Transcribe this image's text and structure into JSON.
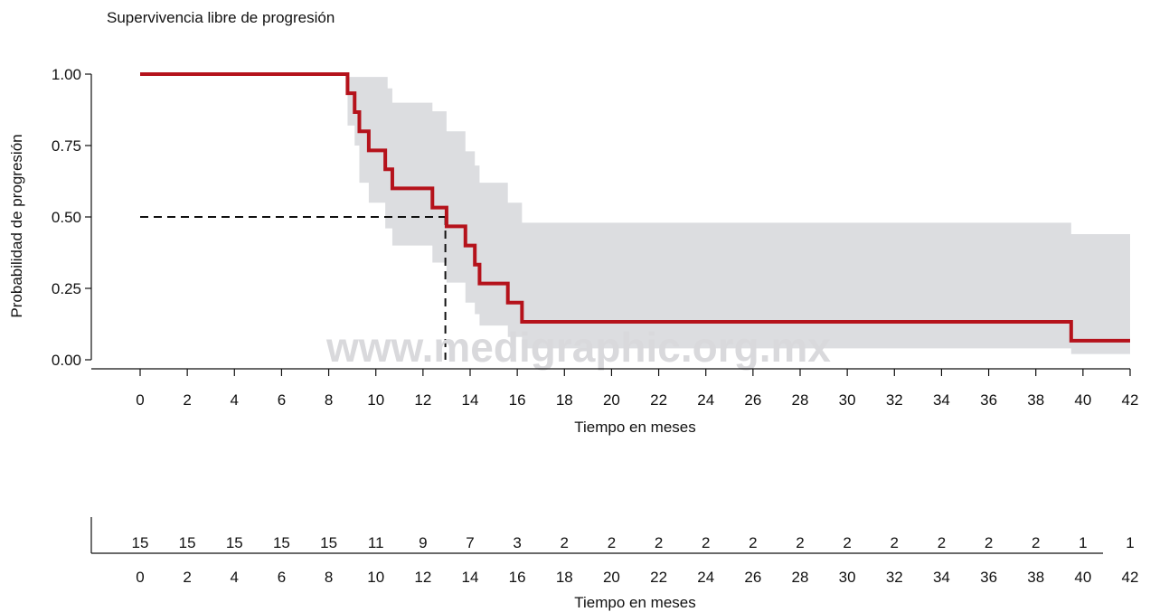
{
  "title": "Supervivencia libre de progresión",
  "watermark": "www.medigraphic.org.mx",
  "colors": {
    "survival_line": "#b5121b",
    "confidence_band": "#dcdde0",
    "median_line": "#111111"
  },
  "chart_data": {
    "type": "line",
    "subtype": "kaplan-meier step",
    "ylabel": "Probabilidad de progresión",
    "xlabel": "Tiempo en meses",
    "xlim": [
      0,
      42
    ],
    "ylim": [
      0,
      1
    ],
    "x_ticks": [
      0,
      2,
      4,
      6,
      8,
      10,
      12,
      14,
      16,
      18,
      20,
      22,
      24,
      26,
      28,
      30,
      32,
      34,
      36,
      38,
      40,
      42
    ],
    "y_ticks": [
      "0.00",
      "0.25",
      "0.50",
      "0.75",
      "1.00"
    ],
    "y_tick_values": [
      0,
      0.25,
      0.5,
      0.75,
      1.0
    ],
    "grid": false,
    "survival_steps": [
      [
        0,
        1.0
      ],
      [
        8.8,
        0.933
      ],
      [
        9.1,
        0.867
      ],
      [
        9.3,
        0.8
      ],
      [
        9.7,
        0.733
      ],
      [
        10.4,
        0.667
      ],
      [
        10.7,
        0.6
      ],
      [
        12.4,
        0.533
      ],
      [
        13.0,
        0.467
      ],
      [
        13.8,
        0.4
      ],
      [
        14.2,
        0.333
      ],
      [
        14.4,
        0.267
      ],
      [
        15.6,
        0.2
      ],
      [
        16.2,
        0.133
      ],
      [
        39.5,
        0.067
      ],
      [
        42,
        0.067
      ]
    ],
    "ci_lower": [
      [
        0,
        1.0
      ],
      [
        8.8,
        0.82
      ],
      [
        9.1,
        0.75
      ],
      [
        9.3,
        0.62
      ],
      [
        9.7,
        0.55
      ],
      [
        10.4,
        0.46
      ],
      [
        10.7,
        0.4
      ],
      [
        12.4,
        0.34
      ],
      [
        13.0,
        0.27
      ],
      [
        13.8,
        0.2
      ],
      [
        14.2,
        0.16
      ],
      [
        14.4,
        0.12
      ],
      [
        15.6,
        0.08
      ],
      [
        16.2,
        0.04
      ],
      [
        39.5,
        0.02
      ],
      [
        42,
        0.02
      ]
    ],
    "ci_upper": [
      [
        0,
        1.0
      ],
      [
        8.8,
        0.99
      ],
      [
        10.5,
        0.95
      ],
      [
        10.7,
        0.9
      ],
      [
        12.4,
        0.87
      ],
      [
        13.0,
        0.8
      ],
      [
        13.8,
        0.73
      ],
      [
        14.2,
        0.68
      ],
      [
        14.4,
        0.62
      ],
      [
        15.6,
        0.55
      ],
      [
        16.2,
        0.48
      ],
      [
        39.5,
        0.44
      ],
      [
        42,
        0.44
      ]
    ],
    "median": {
      "x": 12.95,
      "y": 0.5
    },
    "risk_table": {
      "xlabel": "Tiempo en meses",
      "times": [
        0,
        2,
        4,
        6,
        8,
        10,
        12,
        14,
        16,
        18,
        20,
        22,
        24,
        26,
        28,
        30,
        32,
        34,
        36,
        38,
        40,
        42
      ],
      "at_risk": [
        15,
        15,
        15,
        15,
        15,
        11,
        9,
        7,
        3,
        2,
        2,
        2,
        2,
        2,
        2,
        2,
        2,
        2,
        2,
        2,
        1,
        1
      ]
    }
  }
}
